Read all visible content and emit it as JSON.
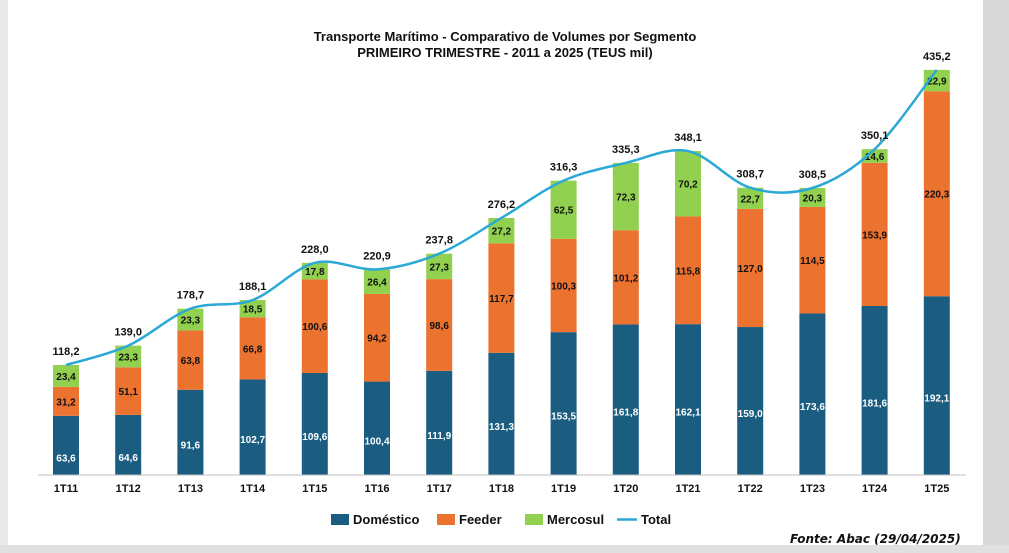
{
  "chart_data": {
    "type": "bar",
    "stacked": true,
    "title": "Transporte Marítimo - Comparativo de Volumes por Segmento",
    "subtitle": "PRIMEIRO TRIMESTRE - 2011 a 2025 (TEUS mil)",
    "categories": [
      "1T11",
      "1T12",
      "1T13",
      "1T14",
      "1T15",
      "1T16",
      "1T17",
      "1T18",
      "1T19",
      "1T20",
      "1T21",
      "1T22",
      "1T23",
      "1T24",
      "1T25"
    ],
    "series": [
      {
        "name": "Doméstico",
        "color": "#1b5d80",
        "values": [
          63.6,
          64.6,
          91.6,
          102.7,
          109.6,
          100.4,
          111.9,
          131.3,
          153.5,
          161.8,
          162.1,
          159.0,
          173.6,
          181.6,
          192.1
        ],
        "labels": [
          "63,6",
          "64,6",
          "91,6",
          "102,7",
          "109,6",
          "100,4",
          "111,9",
          "131,3",
          "153,5",
          "161,8",
          "162,1",
          "159,0",
          "173,6",
          "181,6",
          "192,1"
        ]
      },
      {
        "name": "Feeder",
        "color": "#ec7230",
        "values": [
          31.2,
          51.1,
          63.8,
          66.8,
          100.6,
          94.2,
          98.6,
          117.7,
          100.3,
          101.2,
          115.8,
          127.0,
          114.5,
          153.9,
          220.3
        ],
        "labels": [
          "31,2",
          "51,1",
          "63,8",
          "66,8",
          "100,6",
          "94,2",
          "98,6",
          "117,7",
          "100,3",
          "101,2",
          "115,8",
          "127,0",
          "114,5",
          "153,9",
          "220,3"
        ]
      },
      {
        "name": "Mercosul",
        "color": "#92d050",
        "values": [
          23.4,
          23.3,
          23.3,
          18.5,
          17.8,
          26.4,
          27.3,
          27.2,
          62.5,
          72.3,
          70.2,
          22.7,
          20.3,
          14.6,
          22.9
        ],
        "labels": [
          "23,4",
          "23,3",
          "23,3",
          "18,5",
          "17,8",
          "26,4",
          "27,3",
          "27,2",
          "62,5",
          "72,3",
          "70,2",
          "22,7",
          "20,3",
          "14,6",
          "22,9"
        ]
      }
    ],
    "total": {
      "name": "Total",
      "color": "#2aa9d6",
      "values": [
        118.2,
        139.0,
        178.7,
        188.1,
        228.0,
        220.9,
        237.8,
        276.2,
        316.3,
        335.3,
        348.1,
        308.7,
        308.5,
        350.1,
        435.2
      ],
      "labels": [
        "118,2",
        "139,0",
        "178,7",
        "188,1",
        "228,0",
        "220,9",
        "237,8",
        "276,2",
        "316,3",
        "335,3",
        "348,1",
        "308,7",
        "308,5",
        "350,1",
        "435,2"
      ]
    },
    "ylim": [
      0,
      450
    ],
    "legend": "bottom-center",
    "grid": false
  },
  "source": "Fonte: Abac (29/04/2025)"
}
